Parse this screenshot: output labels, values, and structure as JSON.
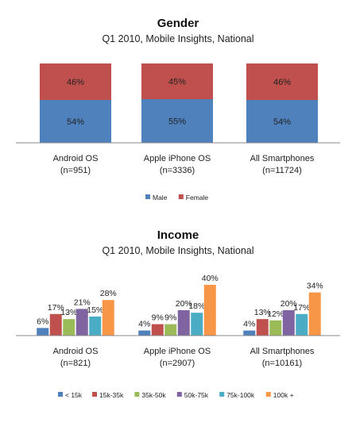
{
  "chart_data": [
    {
      "type": "bar",
      "stacked": true,
      "title": "Gender",
      "subtitle": "Q1 2010, Mobile Insights, National",
      "categories": [
        "Android OS (n=951)",
        "Apple iPhone OS (n=3336)",
        "All Smartphones (n=11724)"
      ],
      "series": [
        {
          "name": "Male",
          "values": [
            54,
            55,
            54
          ]
        },
        {
          "name": "Female",
          "values": [
            46,
            45,
            46
          ]
        }
      ],
      "value_labels": [
        [
          "54%",
          "55%",
          "54%"
        ],
        [
          "46%",
          "45%",
          "46%"
        ]
      ],
      "colors": [
        "#4f81bd",
        "#c0504d"
      ],
      "ylim": [
        0,
        100
      ],
      "legend": "bottom",
      "grid": false
    },
    {
      "type": "bar",
      "stacked": false,
      "title": "Income",
      "subtitle": "Q1 2010, Mobile Insights, National",
      "categories": [
        "Android OS (n=821)",
        "Apple iPhone OS (n=2907)",
        "All Smartphones (n=10161)"
      ],
      "series": [
        {
          "name": "< 15k",
          "values": [
            6,
            4,
            4
          ]
        },
        {
          "name": "15k-35k",
          "values": [
            17,
            9,
            13
          ]
        },
        {
          "name": "35k-50k",
          "values": [
            13,
            9,
            12
          ]
        },
        {
          "name": "50k-75k",
          "values": [
            21,
            20,
            20
          ]
        },
        {
          "name": "75k-100k",
          "values": [
            15,
            18,
            17
          ]
        },
        {
          "name": "100k +",
          "values": [
            28,
            40,
            34
          ]
        }
      ],
      "value_labels": [
        [
          "6%",
          "4%",
          "4%"
        ],
        [
          "17%",
          "9%",
          "13%"
        ],
        [
          "13%",
          "9%",
          "12%"
        ],
        [
          "21%",
          "20%",
          "20%"
        ],
        [
          "15%",
          "18%",
          "17%"
        ],
        [
          "28%",
          "40%",
          "34%"
        ]
      ],
      "colors": [
        "#4f81bd",
        "#c0504d",
        "#9bbb59",
        "#8064a2",
        "#4bacc6",
        "#f79646"
      ],
      "legend": "bottom",
      "grid": false
    }
  ]
}
